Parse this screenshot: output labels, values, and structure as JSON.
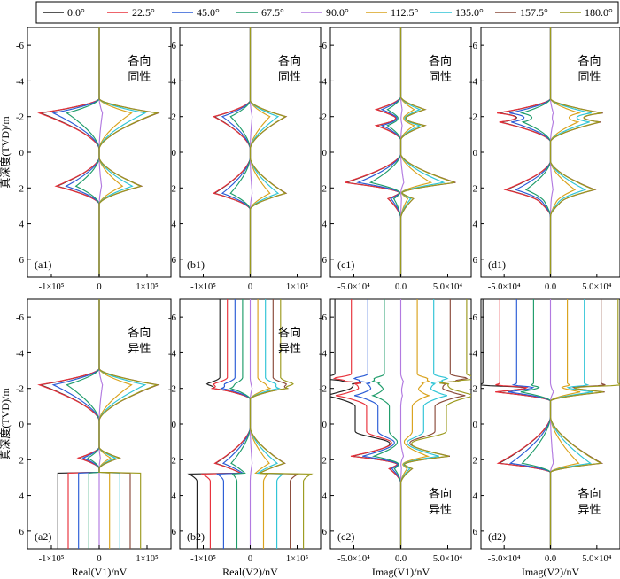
{
  "legend": {
    "entries": [
      {
        "label": "0.0°",
        "color": "#1f1f1f"
      },
      {
        "label": "22.5°",
        "color": "#e8303a"
      },
      {
        "label": "45.0°",
        "color": "#2a5cd6"
      },
      {
        "label": "67.5°",
        "color": "#1e9c6a"
      },
      {
        "label": "90.0°",
        "color": "#b27ae0"
      },
      {
        "label": "112.5°",
        "color": "#d9a21c"
      },
      {
        "label": "135.0°",
        "color": "#2ec4d6"
      },
      {
        "label": "157.5°",
        "color": "#8a4a3a"
      },
      {
        "label": "180.0°",
        "color": "#9c9a1e"
      }
    ]
  },
  "y_axis": {
    "label": "真深度(TVD)/m",
    "ylim": [
      7,
      -7
    ],
    "ticks": [
      -6,
      -4,
      -2,
      0,
      2,
      4,
      6
    ]
  },
  "x_labels": [
    "Real(V1)/nV",
    "Real(V2)/nV",
    "Imag(V1)/nV",
    "Imag(V2)/nV"
  ],
  "chart_data": [
    {
      "id": "a1",
      "type": "line",
      "panel_label": "(a1)",
      "annotation": [
        "各向",
        "同性"
      ],
      "annotation_pos": "top-right",
      "xlim": [
        -150000,
        150000
      ],
      "xticks": [
        -100000,
        0,
        100000
      ],
      "xtick_labels": [
        "-1×10⁵",
        "0",
        "1×10⁵"
      ],
      "y": [
        -7,
        7
      ]
    },
    {
      "id": "b1",
      "type": "line",
      "panel_label": "(b1)",
      "annotation": [
        "各向",
        "同性"
      ],
      "annotation_pos": "top-right",
      "xlim": [
        -150000,
        150000
      ],
      "xticks": [
        -100000,
        0,
        100000
      ],
      "xtick_labels": [
        "-1×10⁵",
        "0",
        "1×10⁵"
      ],
      "y": [
        -7,
        7
      ]
    },
    {
      "id": "c1",
      "type": "line",
      "panel_label": "(c1)",
      "annotation": [
        "各向",
        "同性"
      ],
      "annotation_pos": "top-right",
      "xlim": [
        -75000,
        75000
      ],
      "xticks": [
        -50000,
        0,
        50000
      ],
      "xtick_labels": [
        "-5.0×10⁴",
        "0.0",
        "5.0×10⁴"
      ],
      "y": [
        -7,
        7
      ]
    },
    {
      "id": "d1",
      "type": "line",
      "panel_label": "(d1)",
      "annotation": [
        "各向",
        "同性"
      ],
      "annotation_pos": "top-right",
      "xlim": [
        -75000,
        75000
      ],
      "xticks": [
        -50000,
        0,
        50000
      ],
      "xtick_labels": [
        "-5.0×10⁴",
        "0.0",
        "5.0×10⁴"
      ],
      "y": [
        -7,
        7
      ]
    },
    {
      "id": "a2",
      "type": "line",
      "panel_label": "(a2)",
      "annotation": [
        "各向",
        "异性"
      ],
      "annotation_pos": "top-right",
      "xlim": [
        -150000,
        150000
      ],
      "xticks": [
        -100000,
        0,
        100000
      ],
      "xtick_labels": [
        "-1×10⁵",
        "0",
        "1×10⁵"
      ],
      "y": [
        -7,
        7
      ]
    },
    {
      "id": "b2",
      "type": "line",
      "panel_label": "(b2)",
      "annotation": [
        "各向",
        "异性"
      ],
      "annotation_pos": "top-right",
      "xlim": [
        -150000,
        150000
      ],
      "xticks": [
        -100000,
        0,
        100000
      ],
      "xtick_labels": [
        "-1×10⁵",
        "0",
        "1×10⁵"
      ],
      "y": [
        -7,
        7
      ]
    },
    {
      "id": "c2",
      "type": "line",
      "panel_label": "(c2)",
      "annotation": [
        "各向",
        "异性"
      ],
      "annotation_pos": "bottom-right",
      "xlim": [
        -75000,
        75000
      ],
      "xticks": [
        -50000,
        0,
        50000
      ],
      "xtick_labels": [
        "-5.0×10⁴",
        "0.0",
        "5.0×10⁴"
      ],
      "y": [
        -7,
        7
      ]
    },
    {
      "id": "d2",
      "type": "line",
      "panel_label": "(d2)",
      "annotation": [
        "各向",
        "异性"
      ],
      "annotation_pos": "bottom-right",
      "xlim": [
        -75000,
        75000
      ],
      "xticks": [
        -50000,
        0,
        50000
      ],
      "xtick_labels": [
        "-5.0×10⁴",
        "0.0",
        "5.0×10⁴"
      ],
      "y": [
        -7,
        7
      ]
    }
  ]
}
